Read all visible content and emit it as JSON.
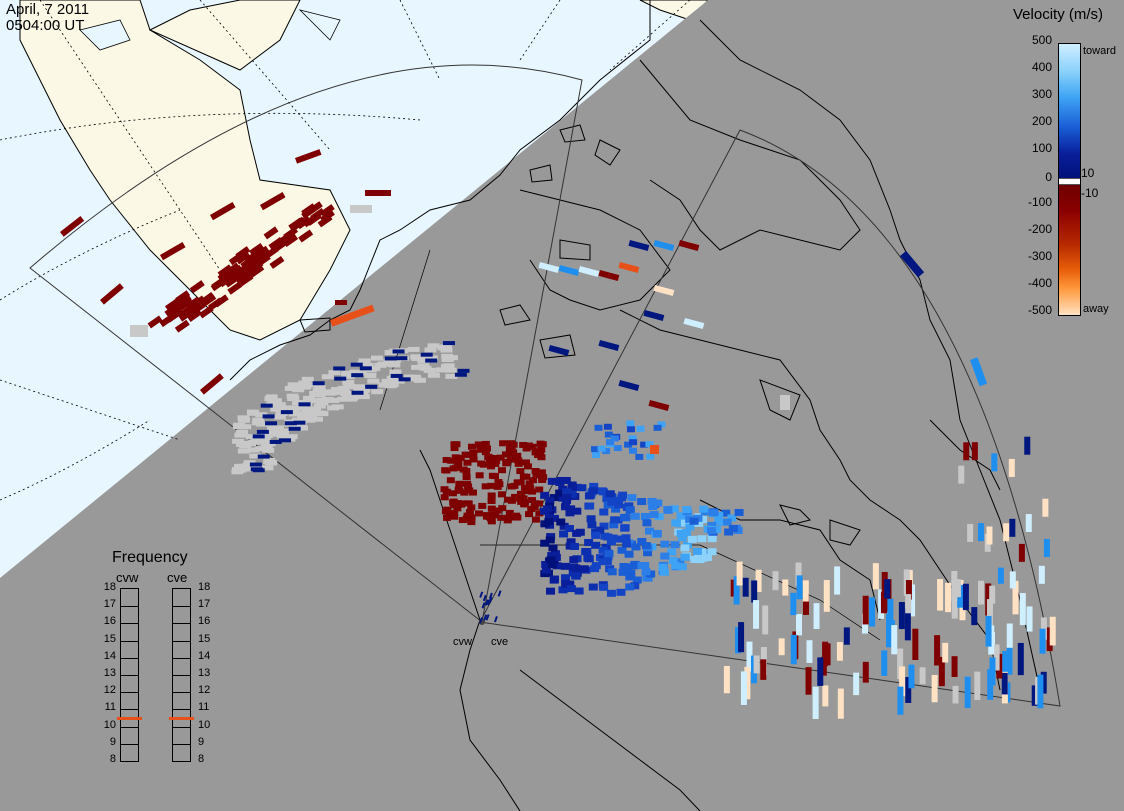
{
  "header": {
    "date": "April, 7 2011",
    "time": "0504:00 UT"
  },
  "legend": {
    "title": "Velocity (m/s)",
    "ticks": [
      "500",
      "400",
      "300",
      "200",
      "100",
      "10",
      "0",
      "-10",
      "-100",
      "-200",
      "-300",
      "-400",
      "-500"
    ],
    "top_label": "toward",
    "bottom_label": "away",
    "colors": {
      "toward_light": "#cfeeff",
      "toward_mid": "#1f8fef",
      "toward_dark": "#00177f",
      "away_dark": "#7f0000",
      "away_mid": "#e8581a",
      "away_light": "#ffe2c4",
      "ground_scatter": "#c8c8c8"
    }
  },
  "frequency": {
    "title": "Frequency",
    "left_radar": "cvw",
    "right_radar": "cve",
    "levels": [
      "18",
      "17",
      "16",
      "15",
      "14",
      "13",
      "12",
      "11",
      "10",
      "9",
      "8"
    ],
    "cvw_mhz": 10.5,
    "cve_mhz": 10.5
  },
  "radars": {
    "west": "cvw",
    "east": "cve"
  }
}
